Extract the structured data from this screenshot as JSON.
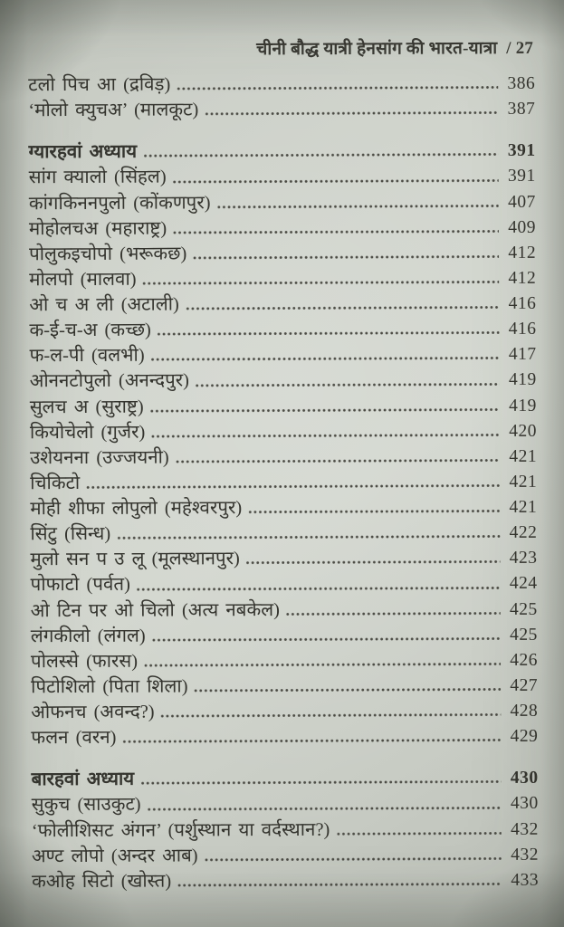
{
  "header": {
    "running_title": "चीनी बौद्ध यात्री हेनसांग की भारत-यात्रा",
    "separator": "/",
    "page_number": "27"
  },
  "toc": {
    "items": [
      {
        "type": "entry",
        "label": "टलो पिच आ (द्रविड़)",
        "page": "386"
      },
      {
        "type": "entry",
        "label": "‘मोलो क्युचअ’ (मालकूट)",
        "page": "387"
      },
      {
        "type": "chapter",
        "label": "ग्यारहवां अध्याय",
        "page": "391"
      },
      {
        "type": "entry",
        "label": "सांग क्यालो (सिंहल)",
        "page": "391"
      },
      {
        "type": "entry",
        "label": "कांगकिननपुलो (कोंकणपुर)",
        "page": "407"
      },
      {
        "type": "entry",
        "label": "मोहोलचअ (महाराष्ट्र)",
        "page": "409"
      },
      {
        "type": "entry",
        "label": "पोलुकइचोपो (भरूकछ)",
        "page": "412"
      },
      {
        "type": "entry",
        "label": "मोलपो (मालवा)",
        "page": "412"
      },
      {
        "type": "entry",
        "label": "ओ च अ ली (अटाली)",
        "page": "416"
      },
      {
        "type": "entry",
        "label": "क-ई-च-अ (कच्छ)",
        "page": "416"
      },
      {
        "type": "entry",
        "label": "फ-ल-पी (वलभी)",
        "page": "417"
      },
      {
        "type": "entry",
        "label": "ओननटोपुलो (अनन्दपुर)",
        "page": "419"
      },
      {
        "type": "entry",
        "label": "सुलच अ (सुराष्ट्र)",
        "page": "419"
      },
      {
        "type": "entry",
        "label": "कियोचेलो (गुर्जर)",
        "page": "420"
      },
      {
        "type": "entry",
        "label": "उशेयनना (उज्जयनी)",
        "page": "421"
      },
      {
        "type": "entry",
        "label": "चिकिटो",
        "page": "421"
      },
      {
        "type": "entry",
        "label": "मोही शीफा लोपुलो (महेश्वरपुर)",
        "page": "421"
      },
      {
        "type": "entry",
        "label": "सिंटु (सिन्ध)",
        "page": "422"
      },
      {
        "type": "entry",
        "label": "मुलो सन प उ लू (मूलस्थानपुर)",
        "page": "423"
      },
      {
        "type": "entry",
        "label": "पोफाटो (पर्वत)",
        "page": "424"
      },
      {
        "type": "entry",
        "label": "ओ टिन पर ओ चिलो (अत्य नबकेल)",
        "page": "425"
      },
      {
        "type": "entry",
        "label": "लंगकीलो (लंगल)",
        "page": "425"
      },
      {
        "type": "entry",
        "label": "पोलस्से (फारस)",
        "page": "426"
      },
      {
        "type": "entry",
        "label": "पिटोशिलो (पिता शिला)",
        "page": "427"
      },
      {
        "type": "entry",
        "label": "ओफनच (अवन्द?)",
        "page": "428"
      },
      {
        "type": "entry",
        "label": "फलन (वरन)",
        "page": "429"
      },
      {
        "type": "chapter",
        "label": "बारहवां अध्याय",
        "page": "430"
      },
      {
        "type": "entry",
        "label": "सुकुच (साउकुट)",
        "page": "430"
      },
      {
        "type": "entry",
        "label": "‘फोलीशिसट अंगन’ (पर्शुस्थान या वर्दस्थान?)",
        "page": "432"
      },
      {
        "type": "entry",
        "label": "अण्ट लोपो (अन्दर आब)",
        "page": "432"
      },
      {
        "type": "entry",
        "label": "कओह सिटो (खोस्त)",
        "page": "433"
      }
    ]
  },
  "colors": {
    "paper": "#cfd3cb",
    "ink": "#35352f",
    "dot_leader": "#4b4b44"
  }
}
